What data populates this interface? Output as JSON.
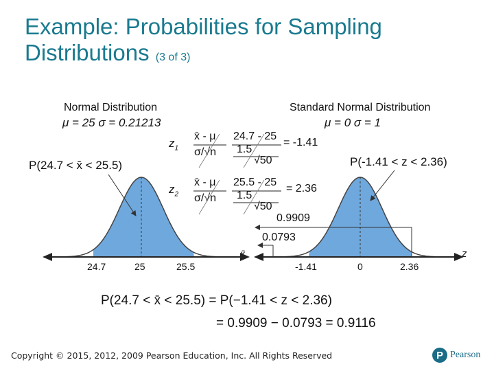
{
  "title": {
    "main": "Example: Probabilities for Sampling Distributions",
    "sub": "(3 of 3)"
  },
  "left_panel": {
    "heading": "Normal Distribution",
    "params": "μ = 25  σ = 0.21213",
    "prob_label": "P(24.7 < x̄ < 25.5)",
    "ticks": [
      "24.7",
      "25",
      "25.5"
    ],
    "axis_label": "x̄"
  },
  "right_panel": {
    "heading": "Standard Normal Distribution",
    "params": "μ = 0  σ = 1",
    "prob_label": "P(-1.41 < z < 2.36)",
    "ticks": [
      "-1.41",
      "0",
      "2.36"
    ],
    "axis_label": "z",
    "area_upper": "0.9909",
    "area_lower": "0.0793"
  },
  "z_formulas": {
    "z1_label": "z1",
    "z2_label": "z2",
    "numerator_generic": "x̄ - μ",
    "denominator_generic": "σ/√n",
    "z1_numerator": "24.7 - 25",
    "z1_denominator_top": "1.5",
    "z1_denominator_bottom": "√50",
    "z1_result": "= -1.41",
    "z2_numerator": "25.5 - 25",
    "z2_denominator_top": "1.5",
    "z2_denominator_bottom": "√50",
    "z2_result": "= 2.36"
  },
  "result": {
    "line1": "P(24.7 < x̄ < 25.5) = P(−1.41 < z < 2.36)",
    "line2": "= 0.9909 − 0.0793 = 0.9116"
  },
  "footer": {
    "copyright": "Copyright © 2015, 2012, 2009 Pearson Education, Inc. All Rights Reserved"
  },
  "logo": {
    "text": "Pearson",
    "mark": "P"
  },
  "colors": {
    "title": "#1a7a8f",
    "shade": "#6fa8dc",
    "brand": "#1b6c87"
  }
}
